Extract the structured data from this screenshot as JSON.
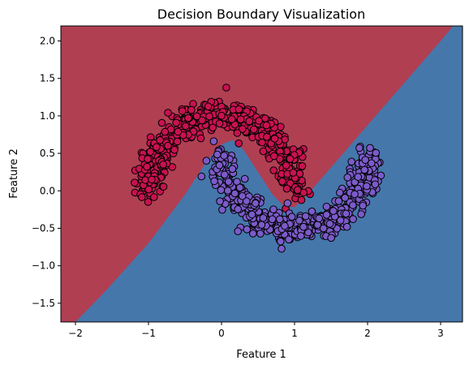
{
  "chart_data": {
    "type": "scatter",
    "title": "Decision Boundary Visualization",
    "xlabel": "Feature 1",
    "ylabel": "Feature 2",
    "xlim": [
      -2.2,
      3.3
    ],
    "ylim": [
      -1.75,
      2.2
    ],
    "xticks": [
      "−2",
      "−1",
      "0",
      "1",
      "2",
      "3"
    ],
    "xtick_values": [
      -2,
      -1,
      0,
      1,
      2,
      3
    ],
    "yticks": [
      "−1.5",
      "−1.0",
      "−0.5",
      "0.0",
      "0.5",
      "1.0",
      "1.5",
      "2.0"
    ],
    "ytick_values": [
      -1.5,
      -1.0,
      -0.5,
      0.0,
      0.5,
      1.0,
      1.5,
      2.0
    ],
    "grid": false,
    "regions": [
      {
        "class": 0,
        "color": "#b03f52",
        "side": "upper-left"
      },
      {
        "class": 1,
        "color": "#4577ab",
        "side": "lower-right"
      }
    ],
    "boundary": {
      "x": [
        -2.2,
        -1.6,
        -1.0,
        -0.5,
        -0.2,
        0.0,
        0.15,
        0.3,
        0.5,
        0.7,
        0.85,
        1.0,
        1.15,
        1.4,
        1.8,
        2.2,
        2.6,
        3.0,
        3.3
      ],
      "y": [
        -1.95,
        -1.35,
        -0.7,
        -0.05,
        0.4,
        0.62,
        0.68,
        0.55,
        0.25,
        -0.05,
        -0.2,
        -0.22,
        -0.08,
        0.2,
        0.65,
        1.1,
        1.55,
        2.0,
        2.35
      ]
    },
    "series": [
      {
        "class": 0,
        "color": "#c8124f",
        "edge": "#000000",
        "count": 500,
        "shape": "upper half-moon",
        "center": [
          0.0,
          0.0
        ],
        "radius": 1.0,
        "theta_range": [
          0,
          180
        ],
        "noise": 0.1
      },
      {
        "class": 1,
        "color": "#7b5bc9",
        "edge": "#000000",
        "count": 500,
        "shape": "lower half-moon",
        "center": [
          1.0,
          0.5
        ],
        "radius": 1.0,
        "theta_range": [
          180,
          360
        ],
        "noise": 0.1
      }
    ]
  }
}
